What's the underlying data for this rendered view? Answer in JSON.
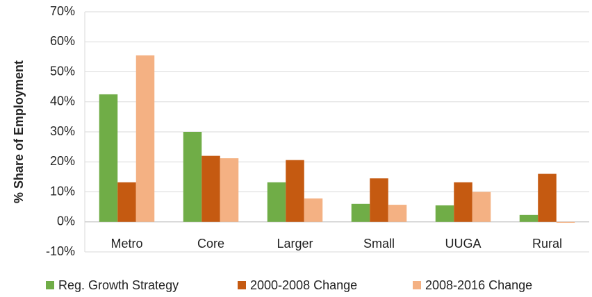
{
  "chart_data": {
    "type": "bar",
    "y_label": "% Share of Employment",
    "categories": [
      "Metro",
      "Core",
      "Larger",
      "Small",
      "UUGA",
      "Rural"
    ],
    "series": [
      {
        "name": "Reg. Growth Strategy",
        "color": "#70ad47",
        "values": [
          42.5,
          30,
          13.2,
          6,
          5.5,
          2.3
        ]
      },
      {
        "name": "2000-2008 Change",
        "color": "#c55a11",
        "values": [
          13.2,
          22,
          20.6,
          14.5,
          13.2,
          16
        ]
      },
      {
        "name": "2008-2016 Change",
        "color": "#f4b183",
        "values": [
          55.5,
          21.2,
          7.8,
          5.7,
          10,
          -0.3
        ]
      }
    ],
    "ylim": [
      -10,
      70
    ],
    "yticks": [
      {
        "value": -10,
        "label": "-10%"
      },
      {
        "value": 0,
        "label": "0%"
      },
      {
        "value": 10,
        "label": "10%"
      },
      {
        "value": 20,
        "label": "20%"
      },
      {
        "value": 30,
        "label": "30%"
      },
      {
        "value": 40,
        "label": "40%"
      },
      {
        "value": 50,
        "label": "50%"
      },
      {
        "value": 60,
        "label": "60%"
      },
      {
        "value": 70,
        "label": "70%"
      }
    ],
    "grid": true,
    "legend": "bottom"
  }
}
